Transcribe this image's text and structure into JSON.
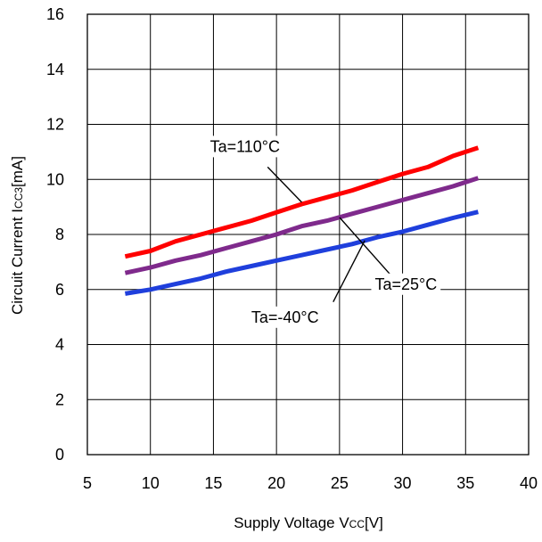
{
  "chart_data": {
    "type": "line",
    "title": "",
    "xlabel": "Supply Voltage Vcc[V]",
    "xlabel_main": "Supply Voltage V",
    "xlabel_sub": "CC",
    "xlabel_unit": "[V]",
    "ylabel": "Circuit Current Icc3[mA]",
    "ylabel_main": "Circuit Current I",
    "ylabel_sub": "CC3",
    "ylabel_unit": "[mA]",
    "xlim": [
      5,
      40
    ],
    "ylim": [
      0,
      16
    ],
    "xticks": [
      5,
      10,
      15,
      20,
      25,
      30,
      35,
      40
    ],
    "yticks": [
      0,
      2,
      4,
      6,
      8,
      10,
      12,
      14,
      16
    ],
    "grid": true,
    "legend": "none",
    "series": [
      {
        "label": "Ta=110°C",
        "color": "#ff0000",
        "x": [
          8,
          10,
          12,
          14,
          16,
          18,
          20,
          22,
          24,
          26,
          28,
          30,
          32,
          34,
          36
        ],
        "y": [
          7.2,
          7.4,
          7.75,
          8.0,
          8.25,
          8.5,
          8.8,
          9.1,
          9.35,
          9.6,
          9.9,
          10.2,
          10.45,
          10.85,
          11.15
        ]
      },
      {
        "label": "Ta=25°C",
        "color": "#7f2a8c",
        "x": [
          8,
          10,
          12,
          14,
          16,
          18,
          20,
          22,
          24,
          26,
          28,
          30,
          32,
          34,
          36
        ],
        "y": [
          6.6,
          6.8,
          7.05,
          7.25,
          7.5,
          7.75,
          8.0,
          8.3,
          8.5,
          8.75,
          9.0,
          9.25,
          9.5,
          9.75,
          10.05
        ]
      },
      {
        "label": "Ta=-40°C",
        "color": "#1f3fdc",
        "x": [
          8,
          10,
          12,
          14,
          16,
          18,
          20,
          22,
          24,
          26,
          28,
          30,
          32,
          34,
          36
        ],
        "y": [
          5.85,
          6.0,
          6.2,
          6.4,
          6.65,
          6.85,
          7.05,
          7.25,
          7.45,
          7.65,
          7.9,
          8.1,
          8.35,
          8.6,
          8.82
        ]
      }
    ],
    "annotations": [
      {
        "text": "Ta=110°C",
        "series": 0
      },
      {
        "text": "Ta=25°C",
        "series": 1
      },
      {
        "text": "Ta=-40°C",
        "series": 2
      }
    ]
  }
}
